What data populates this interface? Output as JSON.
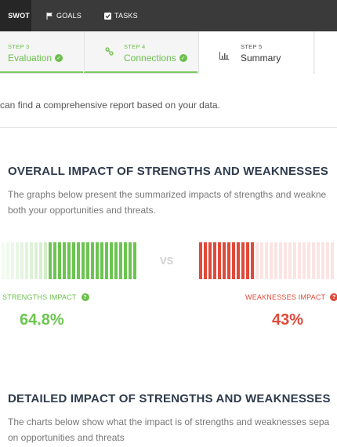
{
  "topnav": {
    "brand": "SWOT",
    "goals_label": "GOALS",
    "tasks_label": "TASKS"
  },
  "steps": [
    {
      "step": "STEP 3",
      "label": "Evaluation",
      "status": "done"
    },
    {
      "step": "STEP 4",
      "label": "Connections",
      "status": "done"
    },
    {
      "step": "STEP 5",
      "label": "Summary",
      "status": "active"
    }
  ],
  "intro": "can find a comprehensive report based on your data.",
  "overall": {
    "title": "OVERALL IMPACT OF STRENGTHS AND WEAKNESSES",
    "desc_line1": "The graphs below present the summarized impacts of strengths and weakne",
    "desc_line2": "both your opportunities and threats.",
    "vs": "VS",
    "strengths": {
      "label": "STRENGTHS IMPACT",
      "value": "64.8%",
      "fraction": 0.648,
      "color": "#6cc451"
    },
    "weaknesses": {
      "label": "WEAKNESSES IMPACT",
      "value": "43%",
      "fraction": 0.43,
      "color": "#e04a3a"
    }
  },
  "detailed": {
    "title": "DETAILED IMPACT OF STRENGTHS AND WEAKNESSES",
    "desc_line1": "The charts below show what the impact is of strengths and weaknesses sepa",
    "desc_line2": "on opportunities and threats"
  },
  "colors": {
    "accent_green": "#6cbf4c",
    "accent_red": "#e04a3a",
    "nav_dark": "#3a3a3a"
  },
  "icons": {
    "goals": "flag-icon",
    "tasks": "checkbox-icon",
    "connections": "link-icon",
    "summary": "bar-chart-icon",
    "help": "question-icon",
    "done": "check-icon"
  }
}
